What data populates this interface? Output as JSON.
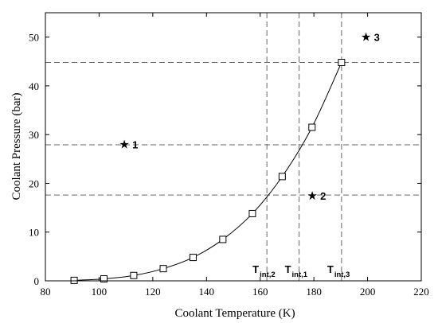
{
  "chart_data": {
    "type": "line",
    "xlabel": "Coolant Temperature (K)",
    "ylabel": "Coolant Pressure (bar)",
    "xlim": [
      80,
      220
    ],
    "ylim": [
      0,
      55
    ],
    "xticks": [
      80,
      100,
      120,
      140,
      160,
      180,
      200,
      220
    ],
    "yticks": [
      0,
      10,
      20,
      30,
      40,
      50
    ],
    "grid": false,
    "series": [
      {
        "x": [
          90.7,
          101.8,
          112.9,
          123.9,
          135.0,
          146.1,
          157.1,
          168.2,
          179.3,
          190.3
        ],
        "values": [
          0.1,
          0.4,
          1.1,
          2.5,
          4.8,
          8.5,
          13.8,
          21.4,
          31.5,
          44.8
        ],
        "marker": "square",
        "color": "#000000"
      }
    ],
    "reference_lines": {
      "horizontal": [
        17.6,
        27.9,
        44.8
      ],
      "vertical": [
        {
          "x": 162.5,
          "label": "T",
          "subscript": "int,2"
        },
        {
          "x": 174.5,
          "label": "T",
          "subscript": "int,1"
        },
        {
          "x": 190.3,
          "label": "T",
          "subscript": "int,3"
        }
      ],
      "color": "#666666",
      "style": "dashed"
    },
    "annotations": [
      {
        "x": 110,
        "y": 28,
        "symbol": "★",
        "label": "1"
      },
      {
        "x": 180,
        "y": 17.5,
        "symbol": "★",
        "label": "2"
      },
      {
        "x": 200,
        "y": 50,
        "symbol": "★",
        "label": "3"
      }
    ]
  }
}
